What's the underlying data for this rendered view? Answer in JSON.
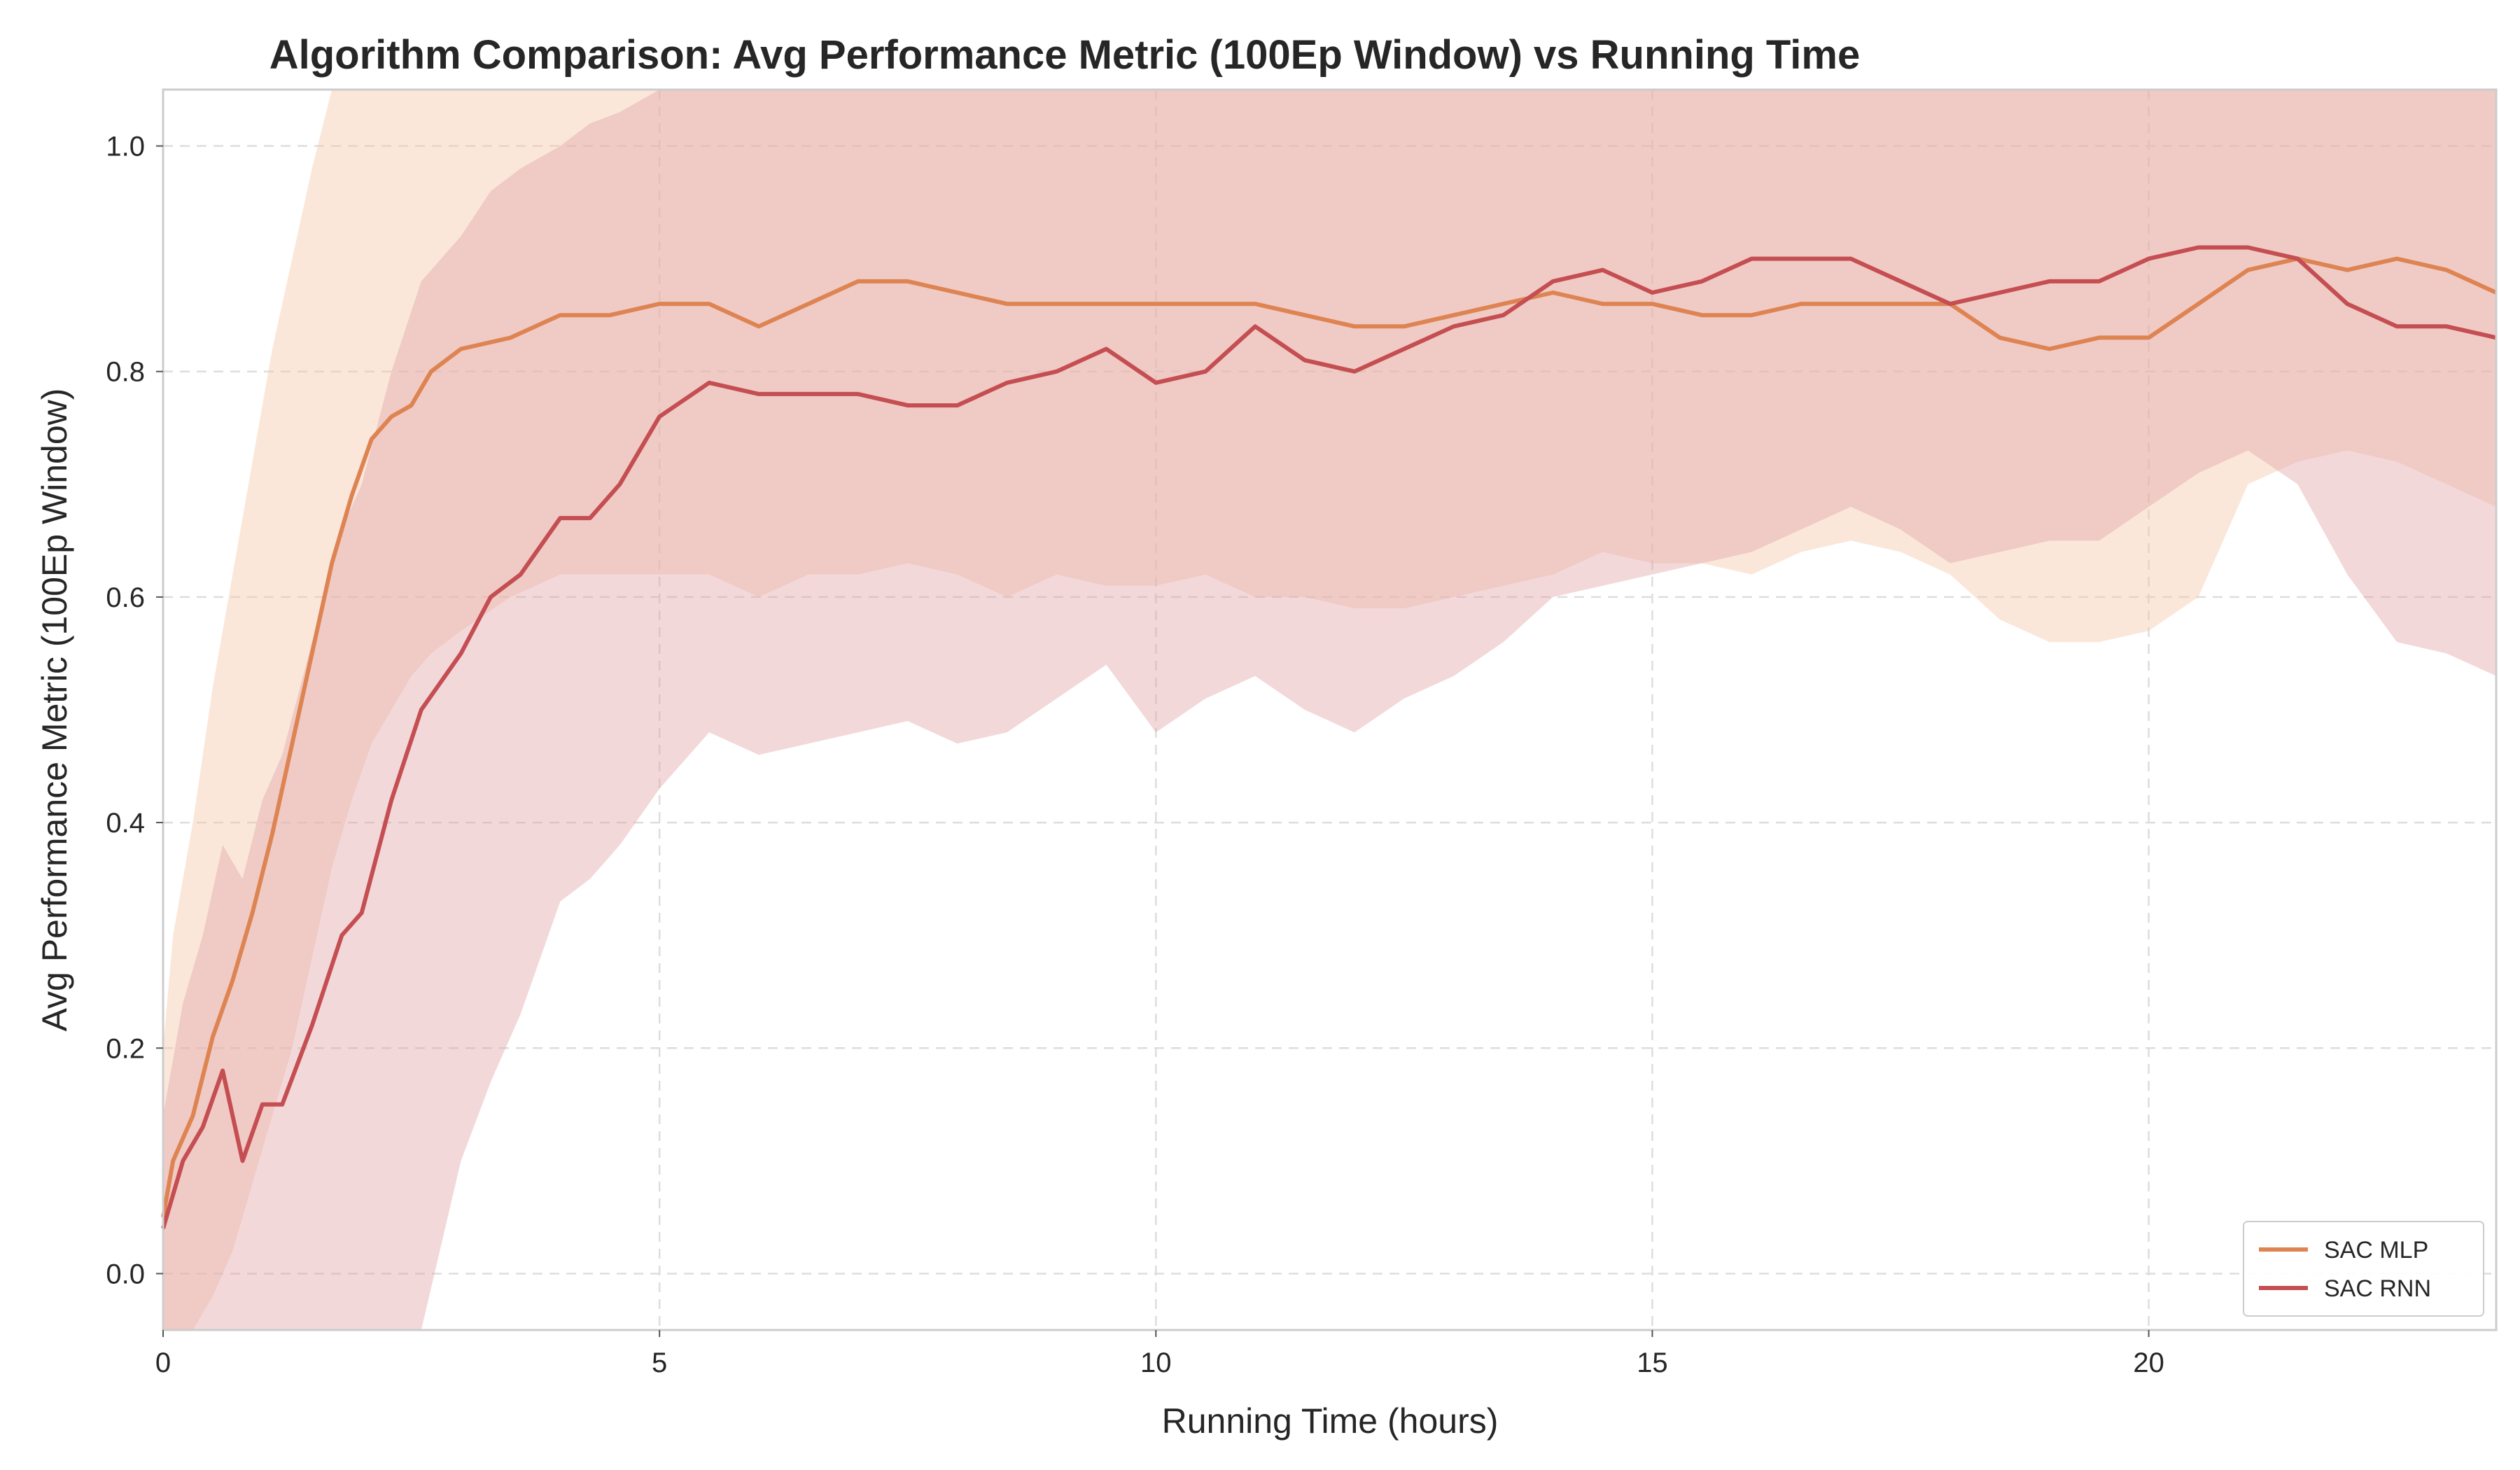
{
  "chart_data": {
    "type": "line",
    "title": "Algorithm Comparison: Avg Performance Metric (100Ep Window) vs Running Time",
    "xlabel": "Running Time (hours)",
    "ylabel": "Avg Performance Metric (100Ep Window)",
    "xlim": [
      0,
      23.5
    ],
    "ylim": [
      -0.05,
      1.05
    ],
    "xticks": [
      0,
      5,
      10,
      15,
      20
    ],
    "xtick_labels": [
      "0",
      "5",
      "10",
      "15",
      "20"
    ],
    "yticks": [
      0.0,
      0.2,
      0.4,
      0.6,
      0.8,
      1.0
    ],
    "ytick_labels": [
      "0.0",
      "0.2",
      "0.4",
      "0.6",
      "0.8",
      "1.0"
    ],
    "grid": true,
    "legend_position": "bottom-right",
    "series": [
      {
        "name": "SAC MLP",
        "color": "#dd8452",
        "band_color": "#f5c9ae",
        "x": [
          0,
          0.1,
          0.3,
          0.5,
          0.7,
          0.9,
          1.1,
          1.3,
          1.5,
          1.7,
          1.9,
          2.1,
          2.3,
          2.5,
          2.7,
          3.0,
          3.5,
          4.0,
          4.5,
          5.0,
          5.5,
          6.0,
          6.5,
          7.0,
          7.5,
          8.0,
          8.5,
          9.0,
          9.5,
          10.0,
          10.5,
          11.0,
          11.5,
          12.0,
          12.5,
          13.0,
          13.5,
          14.0,
          14.5,
          15.0,
          15.5,
          16.0,
          16.5,
          17.0,
          17.5,
          18.0,
          18.5,
          19.0,
          19.5,
          20.0,
          20.5,
          21.0,
          21.5,
          22.0,
          22.5,
          23.0,
          23.5
        ],
        "y": [
          0.05,
          0.1,
          0.14,
          0.21,
          0.26,
          0.32,
          0.39,
          0.47,
          0.55,
          0.63,
          0.69,
          0.74,
          0.76,
          0.77,
          0.8,
          0.82,
          0.83,
          0.85,
          0.85,
          0.86,
          0.86,
          0.84,
          0.86,
          0.88,
          0.88,
          0.87,
          0.86,
          0.86,
          0.86,
          0.86,
          0.86,
          0.86,
          0.85,
          0.84,
          0.84,
          0.85,
          0.86,
          0.87,
          0.86,
          0.86,
          0.85,
          0.85,
          0.86,
          0.86,
          0.86,
          0.86,
          0.83,
          0.82,
          0.83,
          0.83,
          0.86,
          0.89,
          0.9,
          0.89,
          0.9,
          0.89,
          0.87
        ],
        "upper": [
          0.2,
          0.3,
          0.4,
          0.52,
          0.62,
          0.72,
          0.82,
          0.9,
          0.98,
          1.05,
          1.08,
          1.1,
          1.1,
          1.1,
          1.1,
          1.1,
          1.1,
          1.1,
          1.1,
          1.1,
          1.1,
          1.1,
          1.1,
          1.1,
          1.1,
          1.1,
          1.1,
          1.1,
          1.1,
          1.1,
          1.1,
          1.1,
          1.1,
          1.1,
          1.1,
          1.1,
          1.1,
          1.1,
          1.1,
          1.1,
          1.1,
          1.1,
          1.1,
          1.1,
          1.1,
          1.1,
          1.1,
          1.1,
          1.1,
          1.1,
          1.1,
          1.1,
          1.1,
          1.1,
          1.1,
          1.1,
          1.1
        ],
        "lower": [
          -0.05,
          -0.05,
          -0.05,
          -0.02,
          0.02,
          0.08,
          0.14,
          0.2,
          0.28,
          0.36,
          0.42,
          0.47,
          0.5,
          0.53,
          0.55,
          0.57,
          0.6,
          0.62,
          0.62,
          0.62,
          0.62,
          0.6,
          0.62,
          0.62,
          0.63,
          0.62,
          0.6,
          0.62,
          0.61,
          0.61,
          0.62,
          0.6,
          0.6,
          0.59,
          0.59,
          0.6,
          0.61,
          0.62,
          0.64,
          0.63,
          0.63,
          0.62,
          0.64,
          0.65,
          0.64,
          0.62,
          0.58,
          0.56,
          0.56,
          0.57,
          0.6,
          0.7,
          0.72,
          0.73,
          0.72,
          0.7,
          0.68
        ]
      },
      {
        "name": "SAC RNN",
        "color": "#c44e52",
        "band_color": "#e3a3a6",
        "x": [
          0,
          0.2,
          0.4,
          0.6,
          0.8,
          1.0,
          1.2,
          1.5,
          1.8,
          2.0,
          2.3,
          2.6,
          3.0,
          3.3,
          3.6,
          4.0,
          4.3,
          4.6,
          5.0,
          5.5,
          6.0,
          6.5,
          7.0,
          7.5,
          8.0,
          8.5,
          9.0,
          9.5,
          10.0,
          10.5,
          11.0,
          11.5,
          12.0,
          12.5,
          13.0,
          13.5,
          14.0,
          14.5,
          15.0,
          15.5,
          16.0,
          16.5,
          17.0,
          17.5,
          18.0,
          18.5,
          19.0,
          19.5,
          20.0,
          20.5,
          21.0,
          21.5,
          22.0,
          22.5,
          23.0,
          23.5
        ],
        "y": [
          0.04,
          0.1,
          0.13,
          0.18,
          0.1,
          0.15,
          0.15,
          0.22,
          0.3,
          0.32,
          0.42,
          0.5,
          0.55,
          0.6,
          0.62,
          0.67,
          0.67,
          0.7,
          0.76,
          0.79,
          0.78,
          0.78,
          0.78,
          0.77,
          0.77,
          0.79,
          0.8,
          0.82,
          0.79,
          0.8,
          0.84,
          0.81,
          0.8,
          0.82,
          0.84,
          0.85,
          0.88,
          0.89,
          0.87,
          0.88,
          0.9,
          0.9,
          0.9,
          0.88,
          0.86,
          0.87,
          0.88,
          0.88,
          0.9,
          0.91,
          0.91,
          0.9,
          0.86,
          0.84,
          0.84,
          0.83
        ],
        "upper": [
          0.14,
          0.24,
          0.3,
          0.38,
          0.35,
          0.42,
          0.46,
          0.56,
          0.66,
          0.7,
          0.8,
          0.88,
          0.92,
          0.96,
          0.98,
          1.0,
          1.02,
          1.03,
          1.06,
          1.1,
          1.1,
          1.1,
          1.1,
          1.1,
          1.1,
          1.1,
          1.1,
          1.1,
          1.1,
          1.1,
          1.1,
          1.1,
          1.1,
          1.1,
          1.1,
          1.1,
          1.1,
          1.1,
          1.1,
          1.1,
          1.1,
          1.1,
          1.1,
          1.1,
          1.1,
          1.1,
          1.1,
          1.1,
          1.1,
          1.1,
          1.1,
          1.1,
          1.1,
          1.1,
          1.1,
          1.1
        ],
        "lower": [
          -0.05,
          -0.05,
          -0.05,
          -0.05,
          -0.05,
          -0.05,
          -0.05,
          -0.05,
          -0.05,
          -0.05,
          -0.05,
          -0.05,
          0.1,
          0.17,
          0.23,
          0.33,
          0.35,
          0.38,
          0.43,
          0.48,
          0.46,
          0.47,
          0.48,
          0.49,
          0.47,
          0.48,
          0.51,
          0.54,
          0.48,
          0.51,
          0.53,
          0.5,
          0.48,
          0.51,
          0.53,
          0.56,
          0.6,
          0.61,
          0.62,
          0.63,
          0.64,
          0.66,
          0.68,
          0.66,
          0.63,
          0.64,
          0.65,
          0.65,
          0.68,
          0.71,
          0.73,
          0.7,
          0.62,
          0.56,
          0.55,
          0.53
        ]
      }
    ]
  }
}
